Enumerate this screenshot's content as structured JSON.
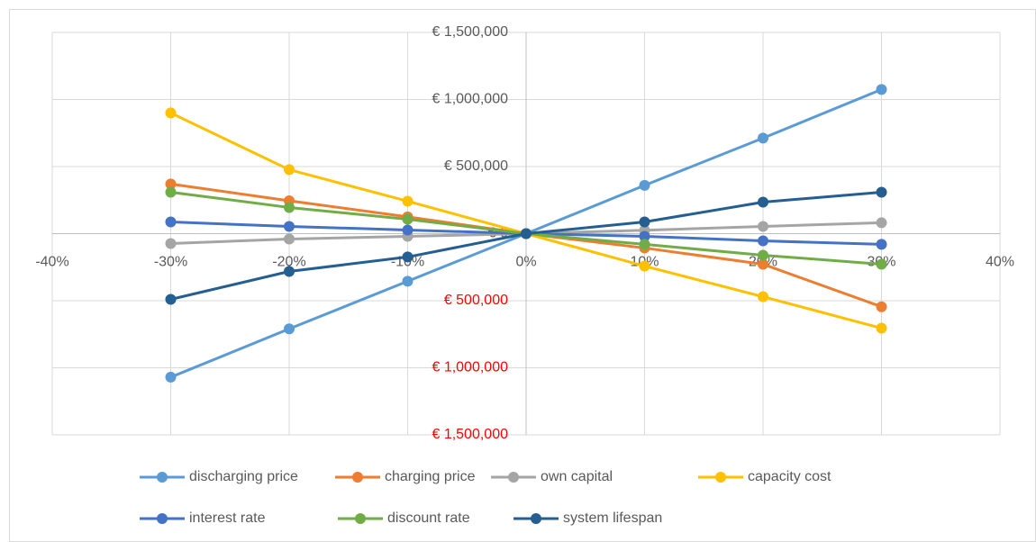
{
  "chart_data": {
    "type": "line",
    "x": [
      -30,
      -20,
      -10,
      0,
      10,
      20,
      30
    ],
    "xlim": [
      -40,
      40
    ],
    "xticks": [
      {
        "value": -40,
        "label": "-40%"
      },
      {
        "value": -30,
        "label": "-30%"
      },
      {
        "value": -20,
        "label": "-20%"
      },
      {
        "value": -10,
        "label": "-10%"
      },
      {
        "value": 0,
        "label": "0%"
      },
      {
        "value": 10,
        "label": "10%"
      },
      {
        "value": 20,
        "label": "20%"
      },
      {
        "value": 30,
        "label": "30%"
      },
      {
        "value": 40,
        "label": "40%"
      }
    ],
    "ylim": [
      -1500000,
      1500000
    ],
    "yticks": [
      {
        "value": 1500000,
        "label": "€ 1,500,000"
      },
      {
        "value": 1000000,
        "label": "€ 1,000,000"
      },
      {
        "value": 500000,
        "label": "€ 500,000"
      },
      {
        "value": 0,
        "label": "€ 0"
      },
      {
        "value": -500000,
        "label": "€ 500,000"
      },
      {
        "value": -1000000,
        "label": "€ 1,000,000"
      },
      {
        "value": -1500000,
        "label": "€ 1,500,000"
      }
    ],
    "negative_tick_color": "#ff0000",
    "grid": true,
    "legend": "bottom",
    "series": [
      {
        "name": "discharging price",
        "color": "#5b9bd5",
        "values": [
          -1070000,
          -710000,
          -355000,
          0,
          360000,
          712000,
          1075000
        ]
      },
      {
        "name": "charging price",
        "color": "#ed7d31",
        "values": [
          370000,
          245000,
          125000,
          0,
          -107000,
          -228000,
          -545000
        ]
      },
      {
        "name": "own capital",
        "color": "#a5a5a5",
        "values": [
          -74000,
          -40000,
          -20000,
          0,
          25000,
          54000,
          81000
        ]
      },
      {
        "name": "capacity cost",
        "color": "#ffc000",
        "values": [
          900000,
          477000,
          242000,
          0,
          -242000,
          -470000,
          -705000
        ]
      },
      {
        "name": "interest rate",
        "color": "#4472c4",
        "values": [
          87000,
          54000,
          27000,
          0,
          -20000,
          -54000,
          -80000
        ]
      },
      {
        "name": "discount rate",
        "color": "#70ad47",
        "values": [
          309000,
          195000,
          107000,
          0,
          -80000,
          -161000,
          -228000
        ]
      },
      {
        "name": "system lifespan",
        "color": "#255e91",
        "values": [
          -490000,
          -282000,
          -174000,
          0,
          87000,
          235000,
          309000
        ]
      }
    ]
  }
}
